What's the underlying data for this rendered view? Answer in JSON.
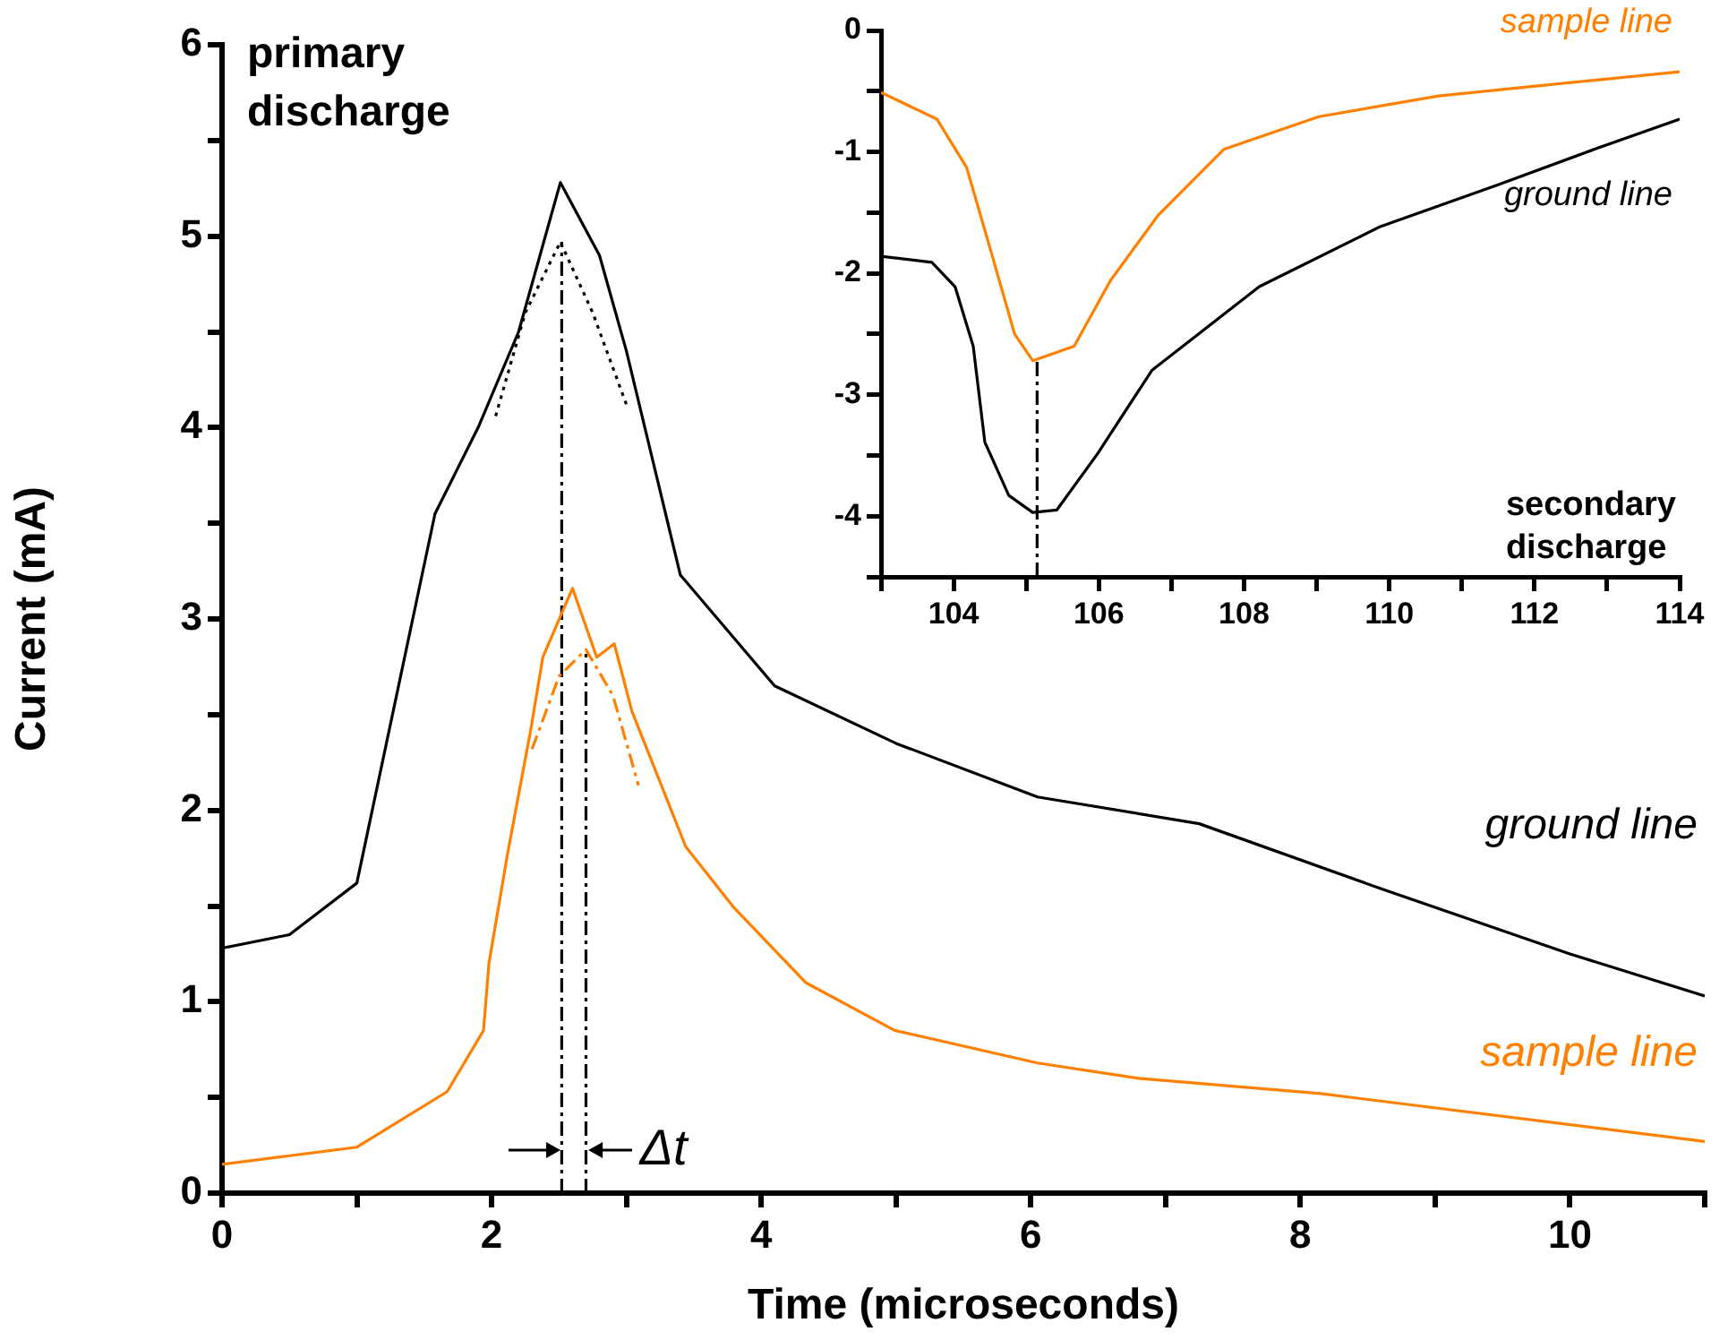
{
  "chart_data": [
    {
      "type": "line",
      "xlabel": "Time (microseconds)",
      "ylabel": "Current (mA)",
      "marker": "none",
      "xlim": [
        0,
        11
      ],
      "ylim": [
        0,
        6
      ],
      "xticks": [
        0,
        {
          "value": 1,
          "label": null
        },
        2,
        {
          "value": 3,
          "label": null
        },
        4,
        {
          "value": 5,
          "label": null
        },
        6,
        {
          "value": 7,
          "label": null
        },
        8,
        {
          "value": 9,
          "label": null
        },
        10,
        {
          "value": 11,
          "label": null
        }
      ],
      "yticks": [
        0,
        {
          "value": 0.5,
          "label": null
        },
        1,
        {
          "value": 1.5,
          "label": null
        },
        2,
        {
          "value": 2.5,
          "label": null
        },
        3,
        {
          "value": 3.5,
          "label": null
        },
        4,
        {
          "value": 4.5,
          "label": null
        },
        5,
        {
          "value": 5.5,
          "label": null
        },
        6
      ],
      "annotations": [
        "primary discharge",
        "Δt"
      ],
      "series": [
        {
          "name": "ground line",
          "color": "#000000",
          "line_style": "solid",
          "x": [
            0,
            0.5,
            1.0,
            1.58,
            1.9,
            2.2,
            2.51,
            2.8,
            3.0,
            3.4,
            4.1,
            5.0,
            6.05,
            7.25,
            8.6,
            10.0,
            11.0
          ],
          "values": [
            1.28,
            1.35,
            1.62,
            3.55,
            4.0,
            4.5,
            5.28,
            4.9,
            4.4,
            3.23,
            2.65,
            2.35,
            2.07,
            1.93,
            1.59,
            1.25,
            1.03
          ]
        },
        {
          "name": "sample line",
          "color": "#ff8000",
          "line_style": "solid",
          "x": [
            0,
            1.0,
            1.67,
            1.94,
            1.98,
            2.12,
            2.29,
            2.38,
            2.6,
            2.78,
            2.91,
            3.04,
            3.22,
            3.44,
            3.8,
            4.33,
            4.99,
            6.05,
            6.8,
            8.15,
            11.0
          ],
          "values": [
            0.15,
            0.24,
            0.53,
            0.85,
            1.2,
            1.78,
            2.42,
            2.8,
            3.16,
            2.8,
            2.87,
            2.52,
            2.2,
            1.81,
            1.49,
            1.1,
            0.85,
            0.68,
            0.6,
            0.52,
            0.27
          ]
        },
        {
          "color": "#000000",
          "line_style": "dotted",
          "x": [
            2.03,
            2.25,
            2.51,
            2.75,
            3.0
          ],
          "values": [
            4.06,
            4.6,
            4.97,
            4.6,
            4.12
          ]
        },
        {
          "color": "#ff8000",
          "line_style": "dashed",
          "x": [
            2.3,
            2.5,
            2.7,
            2.9,
            3.09
          ],
          "values": [
            2.32,
            2.7,
            2.84,
            2.6,
            2.13
          ]
        },
        {
          "color": "#000000",
          "line_style": "dashed",
          "x": [
            2.52,
            2.52
          ],
          "values": [
            0,
            4.97
          ]
        },
        {
          "color": "#000000",
          "line_style": "dashed",
          "x": [
            2.7,
            2.7
          ],
          "values": [
            0,
            2.84
          ]
        }
      ]
    },
    {
      "type": "line",
      "marker": "none",
      "xlim": [
        103,
        114
      ],
      "ylim": [
        -4.5,
        0
      ],
      "xticks": [
        {
          "value": 103,
          "label": null
        },
        104,
        {
          "value": 105,
          "label": null
        },
        106,
        {
          "value": 107,
          "label": null
        },
        108,
        {
          "value": 109,
          "label": null
        },
        110,
        {
          "value": 111,
          "label": null
        },
        112,
        {
          "value": 113,
          "label": null
        },
        114
      ],
      "yticks": [
        {
          "value": -4.5,
          "label": null
        },
        -4,
        {
          "value": -3.5,
          "label": null
        },
        -3,
        {
          "value": -2.5,
          "label": null
        },
        -2,
        {
          "value": -1.5,
          "label": null
        },
        -1,
        {
          "value": -0.5,
          "label": null
        },
        0
      ],
      "annotations": [
        "secondary discharge"
      ],
      "series": [
        {
          "name": "sample line",
          "color": "#ff8000",
          "line_style": "solid",
          "x": [
            103,
            103.77,
            104.18,
            104.51,
            104.84,
            105.09,
            105.66,
            106.16,
            106.82,
            107.72,
            109.03,
            110.68,
            112.32,
            114
          ],
          "values": [
            -0.51,
            -0.73,
            -1.13,
            -1.81,
            -2.5,
            -2.72,
            -2.6,
            -2.06,
            -1.52,
            -0.98,
            -0.71,
            -0.54,
            -0.44,
            -0.34
          ]
        },
        {
          "name": "ground line",
          "color": "#000000",
          "line_style": "solid",
          "x": [
            103,
            103.7,
            104.02,
            104.27,
            104.43,
            104.76,
            105.09,
            105.42,
            105.99,
            106.73,
            108.21,
            109.86,
            111.5,
            112.82,
            114
          ],
          "values": [
            -1.86,
            -1.91,
            -2.11,
            -2.6,
            -3.39,
            -3.83,
            -3.97,
            -3.95,
            -3.48,
            -2.8,
            -2.11,
            -1.62,
            -1.27,
            -0.98,
            -0.73
          ]
        },
        {
          "color": "#000000",
          "line_style": "dashed",
          "x": [
            105.15,
            105.15
          ],
          "values": [
            -4.5,
            -2.72
          ]
        }
      ]
    }
  ]
}
